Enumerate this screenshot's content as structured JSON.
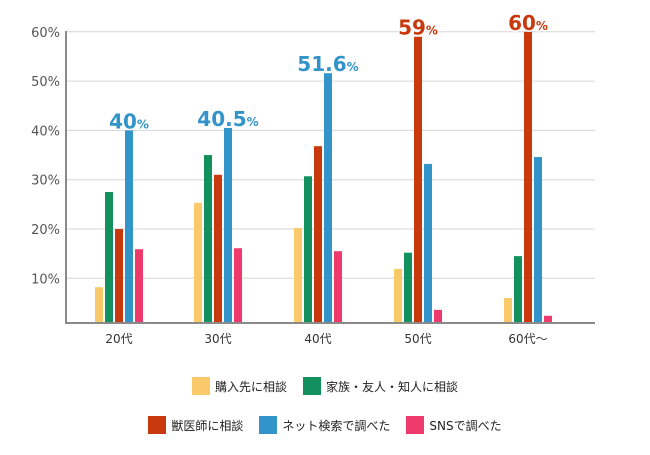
{
  "chart_data": {
    "type": "bar",
    "title": "",
    "xlabel": "",
    "ylabel": "",
    "ylim": [
      0,
      60
    ],
    "yticks": [
      "10%",
      "20%",
      "30%",
      "40%",
      "50%",
      "60%"
    ],
    "grid": true,
    "legend_position": "bottom",
    "categories": [
      "20代",
      "30代",
      "40代",
      "50代",
      "60代～"
    ],
    "series": [
      {
        "name": "購入先に相談",
        "color": "#F9C96A",
        "values": [
          8.2,
          25.3,
          20.2,
          11.9,
          6.0
        ]
      },
      {
        "name": "家族・友人・知人に相談",
        "color": "#12915F",
        "values": [
          27.5,
          35.0,
          30.7,
          15.2,
          14.5
        ]
      },
      {
        "name": "獣医師に相談",
        "color": "#C83A0E",
        "values": [
          20.0,
          31.0,
          36.8,
          59.0,
          60.0
        ]
      },
      {
        "name": "ネット検索で調べた",
        "color": "#3294C8",
        "values": [
          40.0,
          40.5,
          51.6,
          33.2,
          34.6
        ]
      },
      {
        "name": "SNSで調べた",
        "color": "#EF3A6E",
        "values": [
          15.9,
          16.1,
          15.5,
          3.6,
          2.4
        ]
      }
    ],
    "annotations": [
      {
        "category": "20代",
        "series": "ネット検索で調べた",
        "num": "40",
        "unit": "%",
        "color": "#3294C8"
      },
      {
        "category": "30代",
        "series": "ネット検索で調べた",
        "num": "40.5",
        "unit": "%",
        "color": "#3294C8"
      },
      {
        "category": "40代",
        "series": "ネット検索で調べた",
        "num": "51.6",
        "unit": "%",
        "color": "#3294C8"
      },
      {
        "category": "50代",
        "series": "獣医師に相談",
        "num": "59",
        "unit": "%",
        "color": "#C83A0E"
      },
      {
        "category": "60代～",
        "series": "獣医師に相談",
        "num": "60",
        "unit": "%",
        "color": "#C83A0E"
      }
    ]
  },
  "legend": {
    "row1": [
      {
        "label": "購入先に相談",
        "color": "#F9C96A"
      },
      {
        "label": "家族・友人・知人に相談",
        "color": "#12915F"
      }
    ],
    "row2": [
      {
        "label": "獣医師に相談",
        "color": "#C83A0E"
      },
      {
        "label": "ネット検索で調べた",
        "color": "#3294C8"
      },
      {
        "label": "SNSで調べた",
        "color": "#EF3A6E"
      }
    ]
  }
}
